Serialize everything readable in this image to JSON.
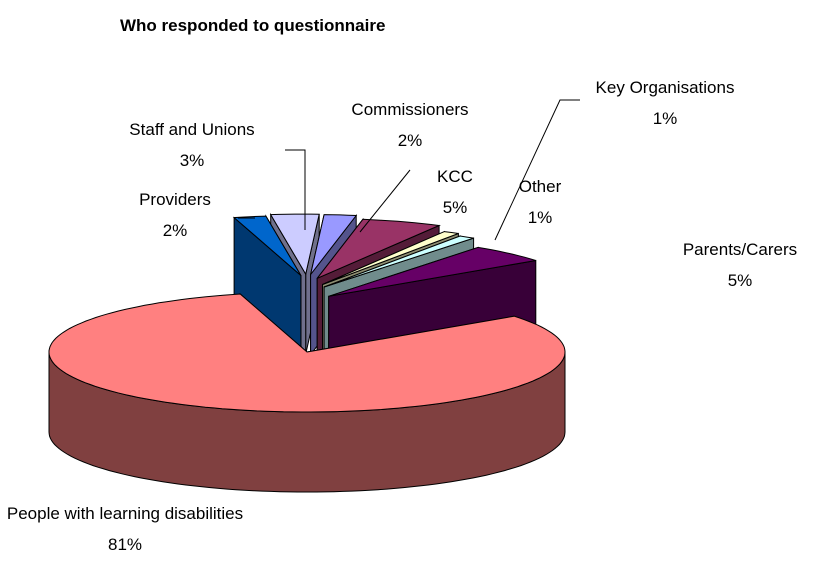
{
  "chart_data": {
    "type": "pie3d",
    "title": "Who responded to questionnaire",
    "categories": [
      "Providers",
      "Staff and Unions",
      "Commissioners",
      "KCC",
      "Key Organisations",
      "Other",
      "Parents/Carers",
      "People with learning disabilities"
    ],
    "values": [
      2,
      3,
      2,
      5,
      1,
      1,
      5,
      81
    ],
    "value_labels": [
      "2%",
      "3%",
      "2%",
      "5%",
      "1%",
      "1%",
      "5%",
      "81%"
    ],
    "colors": [
      "#0066CC",
      "#CCCCFF",
      "#9999FF",
      "#993366",
      "#FFFFCC",
      "#CCFFFF",
      "#660066",
      "#FF8080"
    ]
  }
}
